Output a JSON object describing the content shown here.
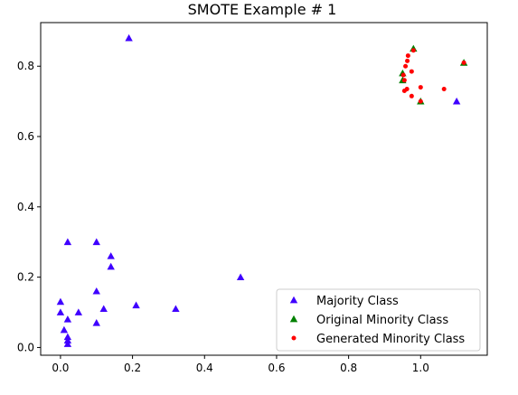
{
  "chart_data": {
    "type": "scatter",
    "title": "SMOTE Example # 1",
    "xlabel": "",
    "ylabel": "",
    "xlim": [
      -0.055,
      1.185
    ],
    "ylim": [
      -0.022,
      0.924
    ],
    "x_ticks": [
      0.0,
      0.2,
      0.4,
      0.6,
      0.8,
      1.0
    ],
    "x_tick_labels": [
      "0.0",
      "0.2",
      "0.4",
      "0.6",
      "0.8",
      "1.0"
    ],
    "y_ticks": [
      0.0,
      0.2,
      0.4,
      0.6,
      0.8
    ],
    "y_tick_labels": [
      "0.0",
      "0.2",
      "0.4",
      "0.6",
      "0.8"
    ],
    "grid": false,
    "legend_position": "lower-right",
    "series": [
      {
        "name": "Majority Class",
        "marker": "triangle-up",
        "color": "#3f00ff",
        "points": [
          [
            0.19,
            0.88
          ],
          [
            0.02,
            0.3
          ],
          [
            0.1,
            0.3
          ],
          [
            0.14,
            0.26
          ],
          [
            0.14,
            0.23
          ],
          [
            0.5,
            0.2
          ],
          [
            0.1,
            0.16
          ],
          [
            0.0,
            0.13
          ],
          [
            0.21,
            0.12
          ],
          [
            0.12,
            0.11
          ],
          [
            0.32,
            0.11
          ],
          [
            0.0,
            0.1
          ],
          [
            0.05,
            0.1
          ],
          [
            0.02,
            0.08
          ],
          [
            0.1,
            0.07
          ],
          [
            0.01,
            0.05
          ],
          [
            0.02,
            0.03
          ],
          [
            0.02,
            0.02
          ],
          [
            0.02,
            0.01
          ],
          [
            1.1,
            0.7
          ]
        ]
      },
      {
        "name": "Original Minority Class",
        "marker": "triangle-up",
        "color": "#008000",
        "points": [
          [
            0.98,
            0.85
          ],
          [
            1.12,
            0.81
          ],
          [
            0.95,
            0.78
          ],
          [
            0.95,
            0.76
          ],
          [
            1.0,
            0.7
          ]
        ]
      },
      {
        "name": "Generated Minority Class",
        "marker": "circle",
        "color": "#ff0000",
        "points": [
          [
            0.98,
            0.845
          ],
          [
            0.965,
            0.83
          ],
          [
            0.963,
            0.815
          ],
          [
            0.958,
            0.8
          ],
          [
            0.975,
            0.785
          ],
          [
            0.952,
            0.775
          ],
          [
            1.12,
            0.81
          ],
          [
            0.955,
            0.76
          ],
          [
            1.0,
            0.74
          ],
          [
            0.962,
            0.735
          ],
          [
            1.065,
            0.735
          ],
          [
            0.955,
            0.73
          ],
          [
            0.975,
            0.715
          ],
          [
            1.0,
            0.7
          ]
        ]
      }
    ]
  }
}
